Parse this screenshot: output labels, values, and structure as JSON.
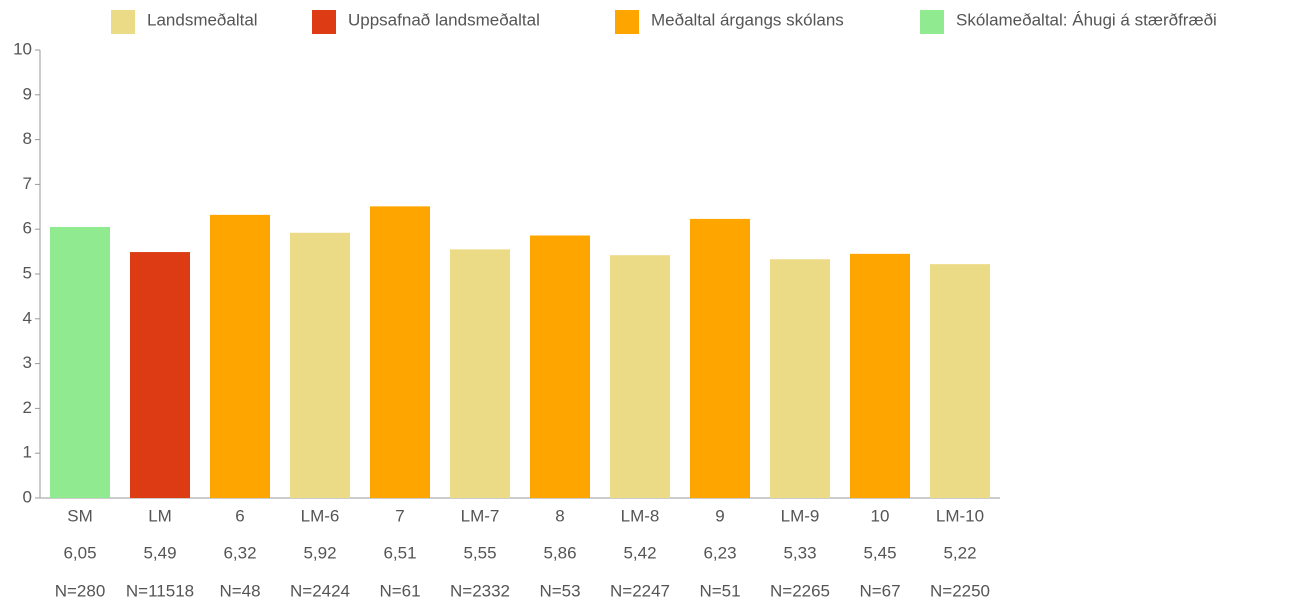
{
  "chart_data": {
    "type": "bar",
    "legend": [
      {
        "name": "Landsmeðaltal",
        "color": "#ecdb86"
      },
      {
        "name": "Uppsafnað landsmeðaltal",
        "color": "#dd3b14"
      },
      {
        "name": "Meðaltal árgangs skólans",
        "color": "#ffa500"
      },
      {
        "name": "Skólameðaltal: Áhugi á stærðfræði",
        "color": "#90ea8f"
      }
    ],
    "categories": [
      "SM",
      "LM",
      "6",
      "LM-6",
      "7",
      "LM-7",
      "8",
      "LM-8",
      "9",
      "LM-9",
      "10",
      "LM-10"
    ],
    "values": [
      6.05,
      5.49,
      6.32,
      5.92,
      6.51,
      5.55,
      5.86,
      5.42,
      6.23,
      5.33,
      5.45,
      5.22
    ],
    "value_labels": [
      "6,05",
      "5,49",
      "6,32",
      "5,92",
      "6,51",
      "5,55",
      "5,86",
      "5,42",
      "6,23",
      "5,33",
      "5,45",
      "5,22"
    ],
    "n_labels": [
      "N=280",
      "N=11518",
      "N=48",
      "N=2424",
      "N=61",
      "N=2332",
      "N=53",
      "N=2247",
      "N=51",
      "N=2265",
      "N=67",
      "N=2250"
    ],
    "colors": [
      "#90ea8f",
      "#dd3b14",
      "#ffa500",
      "#ecdb86",
      "#ffa500",
      "#ecdb86",
      "#ffa500",
      "#ecdb86",
      "#ffa500",
      "#ecdb86",
      "#ffa500",
      "#ecdb86"
    ],
    "ylim": [
      0,
      10
    ],
    "yticks": [
      0,
      1,
      2,
      3,
      4,
      5,
      6,
      7,
      8,
      9,
      10
    ],
    "grid": false
  }
}
